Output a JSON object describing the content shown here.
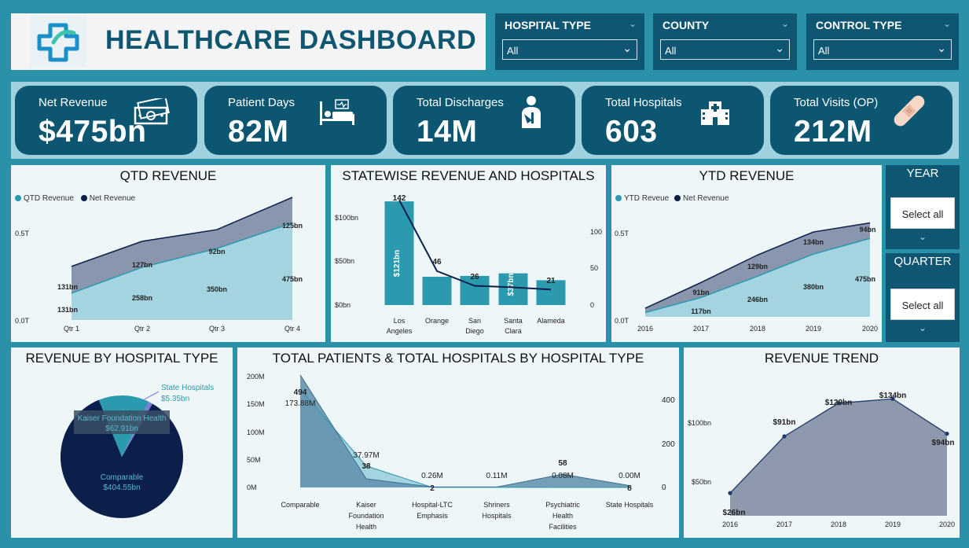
{
  "header": {
    "title": "HEALTHCARE DASHBOARD",
    "logo_icon": "medical-cross-icon"
  },
  "filters": [
    {
      "label": "HOSPITAL TYPE",
      "value": "All"
    },
    {
      "label": "COUNTY",
      "value": "All"
    },
    {
      "label": "CONTROL TYPE",
      "value": "All"
    }
  ],
  "kpis": [
    {
      "label": "Net Revenue",
      "value": "$475bn",
      "icon": "money-icon"
    },
    {
      "label": "Patient Days",
      "value": "82M",
      "icon": "hospital-bed-icon"
    },
    {
      "label": "Total Discharges",
      "value": "14M",
      "icon": "patient-icon"
    },
    {
      "label": "Total Hospitals",
      "value": "603",
      "icon": "hospital-building-icon"
    },
    {
      "label": "Total Visits (OP)",
      "value": "212M",
      "icon": "bandage-icon"
    }
  ],
  "side_filters": [
    {
      "label": "YEAR",
      "value": "Select all"
    },
    {
      "label": "QUARTER",
      "value": "Select all"
    }
  ],
  "colors": {
    "dark": "#0d5672",
    "teal": "#2b99ae",
    "light_teal": "#a3d4e0",
    "navy": "#0b1f4a"
  },
  "chart_data": [
    {
      "id": "qtd",
      "type": "area",
      "title": "QTD REVENUE",
      "legend": [
        "QTD Revenue",
        "Net Revenue"
      ],
      "categories": [
        "Qtr 1",
        "Qtr 2",
        "Qtr 3",
        "Qtr 4"
      ],
      "y_ticks": [
        "0.5T",
        "0.0T"
      ],
      "series": [
        {
          "name": "QTD Revenue",
          "values": [
            131,
            258,
            350,
            475
          ],
          "labels": [
            "131bn",
            "258bn",
            "350bn",
            "475bn"
          ]
        },
        {
          "name": "Net Revenue",
          "values": [
            131,
            127,
            92,
            125
          ],
          "labels": [
            "131bn",
            "127bn",
            "92bn",
            "125bn"
          ]
        }
      ]
    },
    {
      "id": "statewise",
      "type": "bar",
      "title": "STATEWISE REVENUE AND HOSPITALS",
      "categories": [
        "Los Angeles",
        "Orange",
        "San Diego",
        "Santa Clara",
        "Alameda"
      ],
      "category_lines": [
        [
          "Los",
          "Angeles"
        ],
        [
          "Orange"
        ],
        [
          "San",
          "Diego"
        ],
        [
          "Santa",
          "Clara"
        ],
        [
          "Alameda"
        ]
      ],
      "y_left_ticks": [
        "$100bn",
        "$50bn",
        "$0bn"
      ],
      "y_right_ticks": [
        "100",
        "50",
        "0"
      ],
      "revenue": [
        121,
        33,
        34,
        37,
        29
      ],
      "revenue_labels": [
        "$121bn",
        "",
        "",
        "$37bn",
        ""
      ],
      "hospitals": [
        142,
        46,
        26,
        24,
        21
      ],
      "hospital_labels": [
        "142",
        "46",
        "26",
        "",
        "21"
      ]
    },
    {
      "id": "ytd",
      "type": "area",
      "title": "YTD REVENUE",
      "legend": [
        "YTD Reveue",
        "Net Revenue"
      ],
      "categories": [
        "2016",
        "2017",
        "2018",
        "2019",
        "2020"
      ],
      "y_ticks": [
        "0.5T",
        "0.0T"
      ],
      "series": [
        {
          "name": "YTD Reveue",
          "values": [
            26,
            117,
            246,
            380,
            475
          ],
          "labels": [
            "",
            "117bn",
            "246bn",
            "380bn",
            "475bn"
          ]
        },
        {
          "name": "Net Revenue",
          "values": [
            26,
            91,
            129,
            134,
            94
          ],
          "labels": [
            "",
            "91bn",
            "129bn",
            "134bn",
            "94bn"
          ]
        }
      ]
    },
    {
      "id": "pie",
      "type": "pie",
      "title": "REVENUE BY HOSPITAL TYPE",
      "slices": [
        {
          "name": "Comparable",
          "value": 404.55,
          "label": "$404.55bn"
        },
        {
          "name": "Kaiser Foundation Health",
          "value": 62.91,
          "label": "$62.91bn"
        },
        {
          "name": "State Hospitals",
          "value": 5.35,
          "label": "$5.35bn"
        }
      ]
    },
    {
      "id": "patients",
      "type": "area",
      "title": "TOTAL PATIENTS & TOTAL HOSPITALS BY HOSPITAL TYPE",
      "categories": [
        "Comparable",
        "Kaiser Foundation Health",
        "Hospital-LTC Emphasis",
        "Shriners Hospitals",
        "Psychiatric Health Facilities",
        "State Hospitals"
      ],
      "category_lines": [
        [
          "Comparable"
        ],
        [
          "Kaiser",
          "Foundation",
          "Health"
        ],
        [
          "Hospital-LTC",
          "Emphasis"
        ],
        [
          "Shriners",
          "Hospitals"
        ],
        [
          "Psychiatric",
          "Health",
          "Facilities"
        ],
        [
          "State Hospitals"
        ]
      ],
      "y_left_ticks": [
        "200M",
        "150M",
        "100M",
        "50M",
        "0M"
      ],
      "y_right_ticks": [
        "400",
        "200",
        "0"
      ],
      "patients": [
        173.88,
        37.97,
        0.26,
        0.11,
        0.08,
        0.0
      ],
      "patient_labels": [
        "173.88M",
        "37.97M",
        "0.26M",
        "0.11M",
        "0.08M",
        "0.00M"
      ],
      "hospitals": [
        494,
        38,
        2,
        2,
        58,
        8
      ],
      "hospital_labels": [
        "494",
        "38",
        "2",
        "",
        "58",
        "8"
      ]
    },
    {
      "id": "trend",
      "type": "area",
      "title": "REVENUE TREND",
      "categories": [
        "2016",
        "2017",
        "2018",
        "2019",
        "2020"
      ],
      "y_ticks": [
        "$100bn",
        "$50bn"
      ],
      "values": [
        26,
        91,
        129,
        134,
        94
      ],
      "labels": [
        "$26bn",
        "$91bn",
        "$129bn",
        "$134bn",
        "$94bn"
      ]
    }
  ]
}
